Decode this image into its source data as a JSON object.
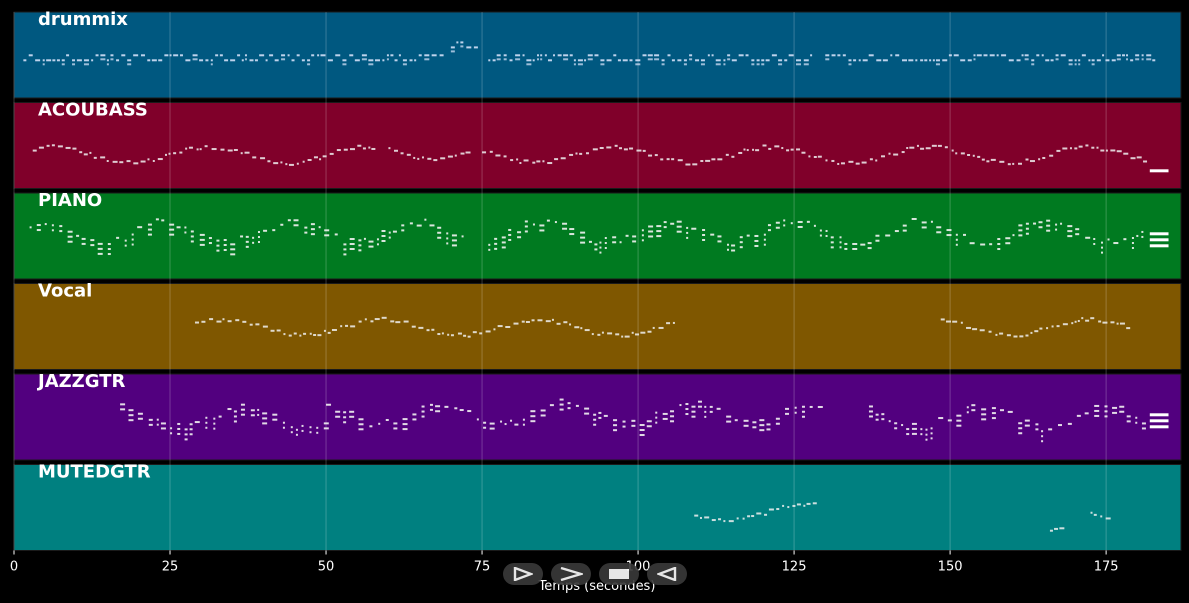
{
  "chart_data": {
    "type": "scatter",
    "title": "",
    "xlabel": "Temps (secondes)",
    "ylabel": "",
    "xlim": [
      0,
      187
    ],
    "xticks": [
      "0",
      "25",
      "50",
      "75",
      "100",
      "125",
      "150",
      "175"
    ],
    "grid": true,
    "tracks": [
      {
        "name": "drummix",
        "color": "#005880",
        "segments": [
          [
            1.5,
            69,
            0.55
          ],
          [
            70,
            74,
            0.4
          ],
          [
            76,
            128,
            0.55
          ],
          [
            130,
            183,
            0.55
          ]
        ],
        "pattern": "drum"
      },
      {
        "name": "ACOUBASS",
        "color": "#80002a",
        "segments": [
          [
            3,
            58,
            0.6
          ],
          [
            60,
            73,
            0.55
          ],
          [
            75,
            181,
            0.6
          ]
        ],
        "pattern": "melody",
        "end_bar": [
          182,
          185,
          0.8
        ]
      },
      {
        "name": "PIANO",
        "color": "#007a20",
        "segments": [
          [
            2.5,
            72,
            0.5
          ],
          [
            76,
            181,
            0.5
          ]
        ],
        "pattern": "chords",
        "end_bar": [
          182,
          185,
          0.55
        ]
      },
      {
        "name": "Vocal",
        "color": "#7f5700",
        "segments": [
          [
            29,
            106,
            0.5
          ],
          [
            148.5,
            179,
            0.5
          ]
        ],
        "pattern": "melody"
      },
      {
        "name": "JAZZGTR",
        "color": "#52007f",
        "segments": [
          [
            17,
            50,
            0.55
          ],
          [
            50,
            129,
            0.5
          ],
          [
            137,
            181,
            0.55
          ]
        ],
        "pattern": "chords",
        "end_bar": [
          182,
          185,
          0.55
        ]
      },
      {
        "name": "MUTEDGTR",
        "color": "#008080",
        "segments": [
          [
            109,
            129,
            0.55
          ],
          [
            166,
            168,
            0.65
          ],
          [
            172.5,
            175,
            0.6
          ]
        ],
        "pattern": "melody"
      }
    ]
  },
  "controls": {
    "play": "play-icon",
    "forward": "forward-icon",
    "stop": "stop-icon",
    "rewind": "rewind-icon"
  }
}
